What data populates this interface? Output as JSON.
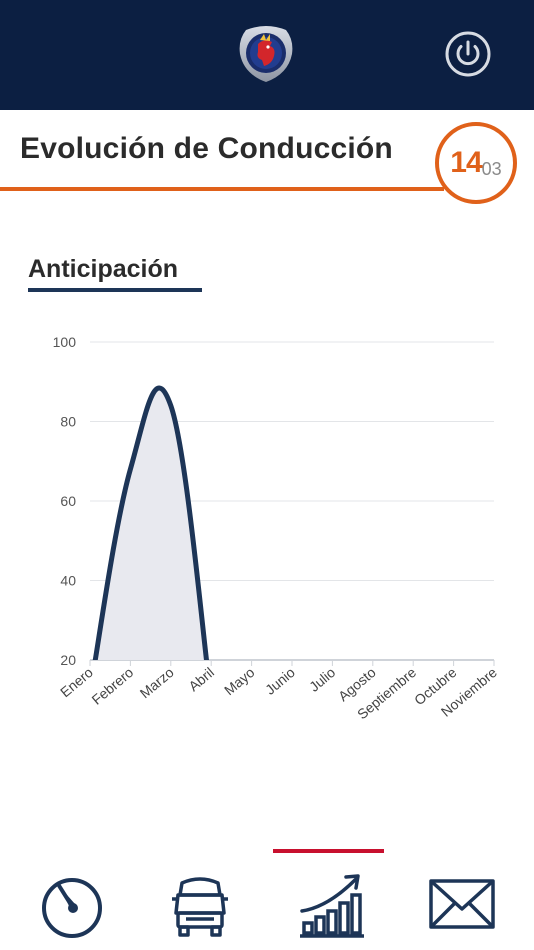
{
  "header": {
    "brand_icon": "scania-griffin-logo",
    "power_icon": "power-icon"
  },
  "page": {
    "title": "Evolución de Conducción",
    "badge": {
      "day": "14",
      "month": "03"
    }
  },
  "section": {
    "title": "Anticipación"
  },
  "colors": {
    "header_bg": "#0c1f42",
    "accent_orange": "#e0611a",
    "series": "#1d3557",
    "active_tab": "#c8102e"
  },
  "chart_data": {
    "type": "area",
    "categories": [
      "Enero",
      "Febrero",
      "Marzo",
      "Abril",
      "Mayo",
      "Junio",
      "Julio",
      "Agosto",
      "Septiembre",
      "Octubre",
      "Noviembre"
    ],
    "values": [
      12,
      68,
      84,
      10,
      null,
      null,
      null,
      null,
      null,
      null,
      null
    ],
    "yticks": [
      20,
      40,
      60,
      80,
      100
    ],
    "ylim": [
      20,
      100
    ],
    "grid": true,
    "legend": "none"
  },
  "nav": {
    "items": [
      {
        "icon": "speedometer-icon",
        "active": false
      },
      {
        "icon": "truck-fleet-icon",
        "active": false
      },
      {
        "icon": "growth-chart-icon",
        "active": true
      },
      {
        "icon": "mail-icon",
        "active": false
      }
    ]
  }
}
